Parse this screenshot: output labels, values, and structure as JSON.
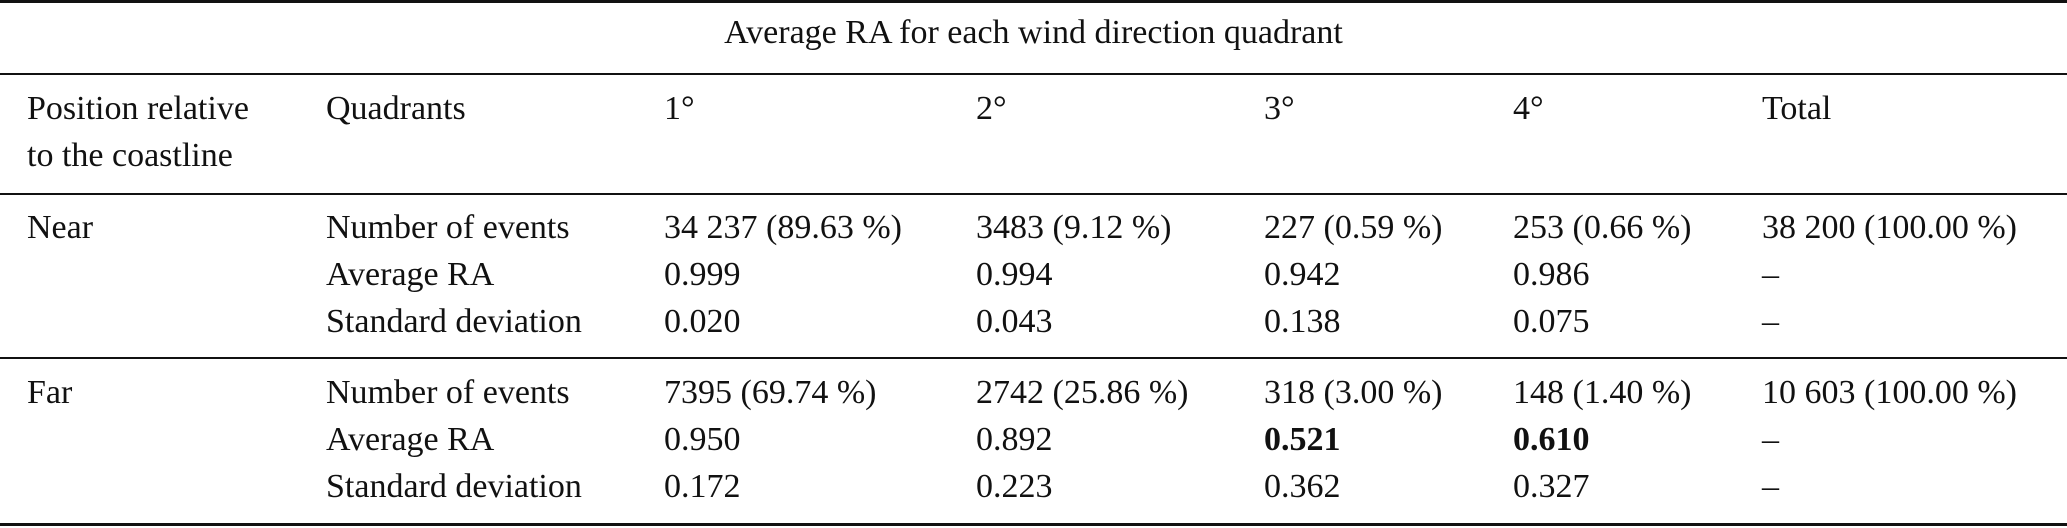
{
  "table": {
    "caption": "Average RA for each wind direction quadrant",
    "header": {
      "position_line1": "Position relative",
      "position_line2": "to the coastline",
      "quadrants": "Quadrants",
      "q1": "1°",
      "q2": "2°",
      "q3": "3°",
      "q4": "4°",
      "total": "Total"
    },
    "groups": [
      {
        "position": "Near",
        "rows": [
          {
            "metric": "Number of events",
            "q1": "34 237 (89.63 %)",
            "q2": "3483 (9.12 %)",
            "q3": "227 (0.59 %)",
            "q4": "253 (0.66 %)",
            "total": "38 200 (100.00 %)"
          },
          {
            "metric": "Average RA",
            "q1": "0.999",
            "q2": "0.994",
            "q3": "0.942",
            "q4": "0.986",
            "total": "–"
          },
          {
            "metric": "Standard deviation",
            "q1": "0.020",
            "q2": "0.043",
            "q3": "0.138",
            "q4": "0.075",
            "total": "–"
          }
        ]
      },
      {
        "position": "Far",
        "rows": [
          {
            "metric": "Number of events",
            "q1": "7395 (69.74 %)",
            "q2": "2742 (25.86 %)",
            "q3": "318 (3.00 %)",
            "q4": "148 (1.40 %)",
            "total": "10 603 (100.00 %)"
          },
          {
            "metric": "Average RA",
            "q1": "0.950",
            "q2": "0.892",
            "q3": "0.521",
            "q4": "0.610",
            "total": "–"
          },
          {
            "metric": "Standard deviation",
            "q1": "0.172",
            "q2": "0.223",
            "q3": "0.362",
            "q4": "0.327",
            "total": "–"
          }
        ]
      }
    ]
  }
}
